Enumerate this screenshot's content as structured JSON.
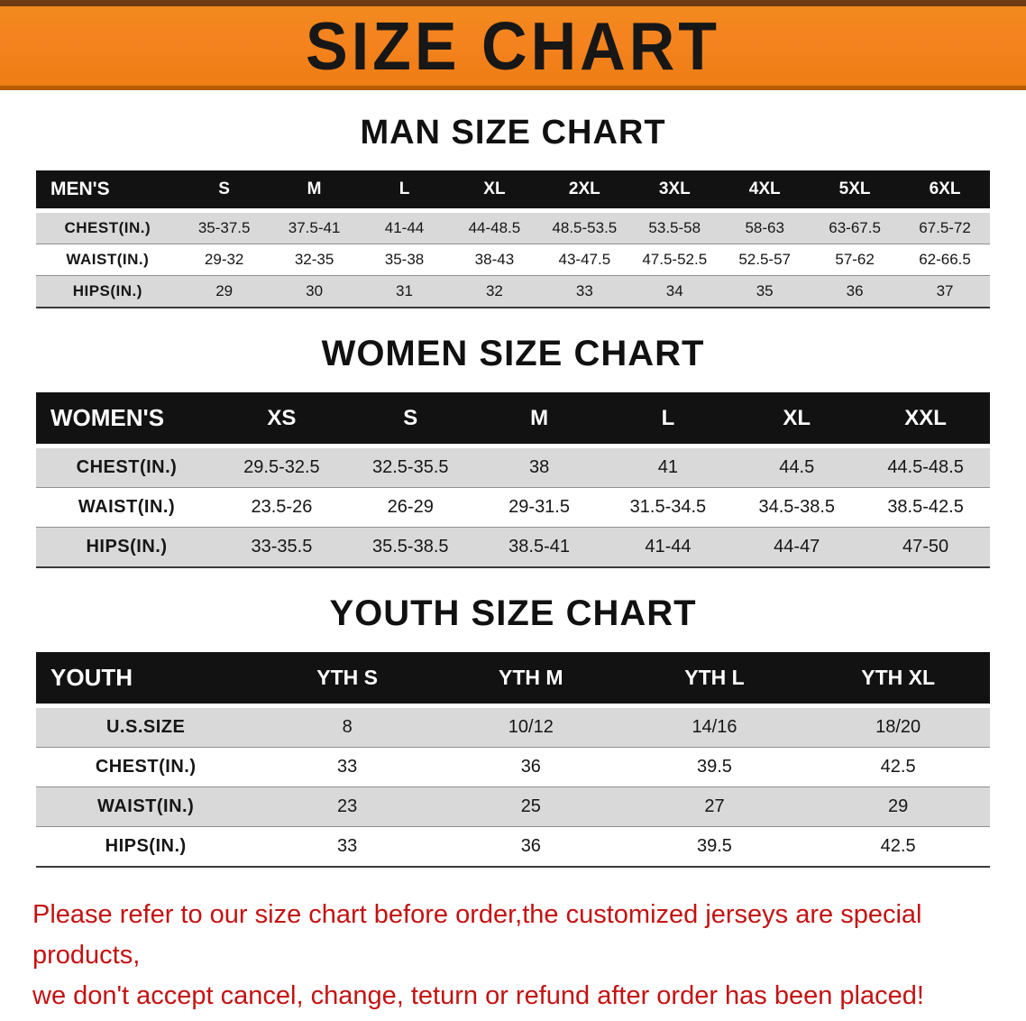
{
  "banner": {
    "title": "SIZE CHART"
  },
  "colors": {
    "banner_bg": "#f5831f",
    "table_header_bg": "#121212",
    "stripe_row": "#d9d9d9",
    "footer_text": "#c41212"
  },
  "sections": [
    {
      "heading": "MAN SIZE CHART",
      "table": {
        "label": "MEN'S",
        "columns": [
          "S",
          "M",
          "L",
          "XL",
          "2XL",
          "3XL",
          "4XL",
          "5XL",
          "6XL"
        ],
        "rows": [
          {
            "label": "CHEST(IN.)",
            "values": [
              "35-37.5",
              "37.5-41",
              "41-44",
              "44-48.5",
              "48.5-53.5",
              "53.5-58",
              "58-63",
              "63-67.5",
              "67.5-72"
            ]
          },
          {
            "label": "WAIST(IN.)",
            "values": [
              "29-32",
              "32-35",
              "35-38",
              "38-43",
              "43-47.5",
              "47.5-52.5",
              "52.5-57",
              "57-62",
              "62-66.5"
            ]
          },
          {
            "label": "HIPS(IN.)",
            "values": [
              "29",
              "30",
              "31",
              "32",
              "33",
              "34",
              "35",
              "36",
              "37"
            ]
          }
        ]
      }
    },
    {
      "heading": "WOMEN SIZE CHART",
      "table": {
        "label": "WOMEN'S",
        "columns": [
          "XS",
          "S",
          "M",
          "L",
          "XL",
          "XXL"
        ],
        "rows": [
          {
            "label": "CHEST(IN.)",
            "values": [
              "29.5-32.5",
              "32.5-35.5",
              "38",
              "41",
              "44.5",
              "44.5-48.5"
            ]
          },
          {
            "label": "WAIST(IN.)",
            "values": [
              "23.5-26",
              "26-29",
              "29-31.5",
              "31.5-34.5",
              "34.5-38.5",
              "38.5-42.5"
            ]
          },
          {
            "label": "HIPS(IN.)",
            "values": [
              "33-35.5",
              "35.5-38.5",
              "38.5-41",
              "41-44",
              "44-47",
              "47-50"
            ]
          }
        ]
      }
    },
    {
      "heading": "YOUTH SIZE CHART",
      "table": {
        "label": "YOUTH",
        "columns": [
          "YTH S",
          "YTH M",
          "YTH L",
          "YTH XL"
        ],
        "rows": [
          {
            "label": "U.S.SIZE",
            "values": [
              "8",
              "10/12",
              "14/16",
              "18/20"
            ]
          },
          {
            "label": "CHEST(IN.)",
            "values": [
              "33",
              "36",
              "39.5",
              "42.5"
            ]
          },
          {
            "label": "WAIST(IN.)",
            "values": [
              "23",
              "25",
              "27",
              "29"
            ]
          },
          {
            "label": "HIPS(IN.)",
            "values": [
              "33",
              "36",
              "39.5",
              "42.5"
            ]
          }
        ]
      }
    }
  ],
  "footer": {
    "lines": [
      "Please refer to our size chart before order,the customized jerseys are special products,",
      "we don't accept cancel, change, teturn or refund after order has been placed!"
    ]
  }
}
